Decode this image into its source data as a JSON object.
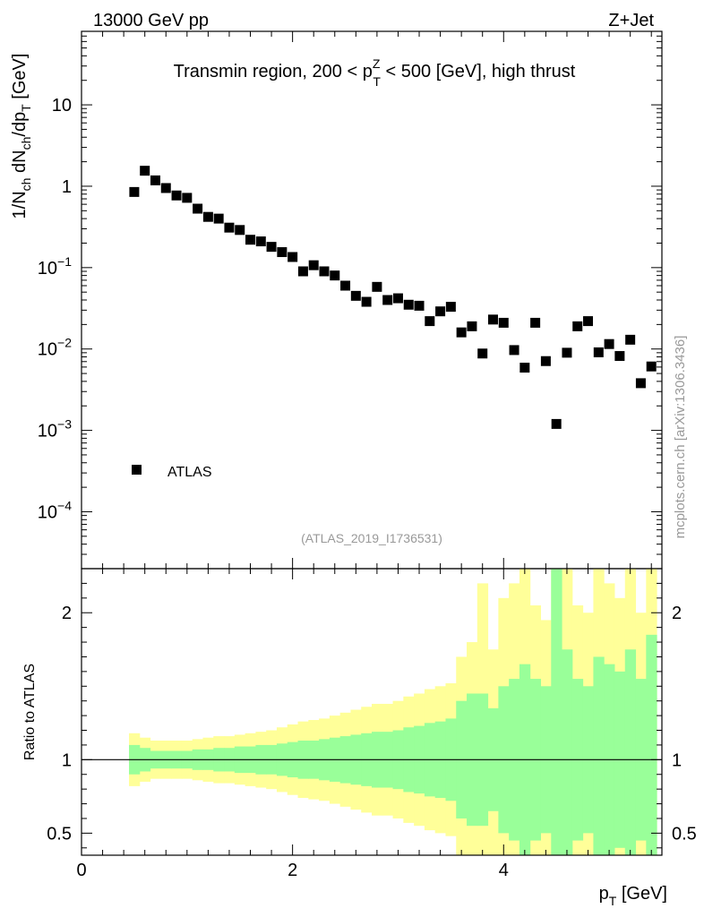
{
  "header": {
    "left": "13000 GeV pp",
    "right": "Z+Jet"
  },
  "plot_title": {
    "prefix": "Transmin region, 200 < p",
    "sup": "Z",
    "sub": "T",
    "suffix": " < 500 [GeV], high thrust"
  },
  "watermark": "(ATLAS_2019_I1736531)",
  "side_label": "mcplots.cern.ch [arXiv:1306.3436]",
  "legend": {
    "label": "ATLAS"
  },
  "y_label_main": {
    "p1": "1/N",
    "s1": "ch",
    "p2": " dN",
    "s2": "ch",
    "p3": "/dp",
    "s3": "T",
    "p4": " [GeV]"
  },
  "y_label_ratio": "Ratio to ATLAS",
  "x_label": {
    "p": "p",
    "sub": "T",
    "unit": " [GeV]"
  },
  "colors": {
    "marker": "#000000",
    "band_outer": "#ffff99",
    "band_inner": "#99ff99",
    "text_gray": "#999999"
  },
  "chart_data": [
    {
      "type": "scatter",
      "name": "main",
      "yscale": "log",
      "xlim": [
        0,
        5.5
      ],
      "ylim": [
        2e-05,
        80
      ],
      "xticks": [
        0,
        2,
        4
      ],
      "yticks": [
        {
          "value": 10,
          "base": "10",
          "exp": ""
        },
        {
          "value": 1,
          "base": "1",
          "exp": ""
        },
        {
          "value": 0.1,
          "base": "10",
          "exp": "−1"
        },
        {
          "value": 0.01,
          "base": "10",
          "exp": "−2"
        },
        {
          "value": 0.001,
          "base": "10",
          "exp": "−3"
        },
        {
          "value": 0.0001,
          "base": "10",
          "exp": "−4"
        }
      ],
      "series": [
        {
          "name": "ATLAS",
          "x": [
            0.5,
            0.6,
            0.7,
            0.8,
            0.9,
            1.0,
            1.1,
            1.2,
            1.3,
            1.4,
            1.5,
            1.6,
            1.7,
            1.8,
            1.9,
            2.0,
            2.1,
            2.2,
            2.3,
            2.4,
            2.5,
            2.6,
            2.7,
            2.8,
            2.9,
            3.0,
            3.1,
            3.2,
            3.3,
            3.4,
            3.5,
            3.6,
            3.7,
            3.8,
            3.9,
            4.0,
            4.1,
            4.2,
            4.3,
            4.4,
            4.5,
            4.6,
            4.7,
            4.8,
            4.9,
            5.0,
            5.1,
            5.2,
            5.3,
            5.4
          ],
          "y": [
            0.85,
            1.55,
            1.18,
            0.95,
            0.77,
            0.72,
            0.53,
            0.42,
            0.4,
            0.31,
            0.29,
            0.22,
            0.21,
            0.18,
            0.155,
            0.135,
            0.09,
            0.107,
            0.09,
            0.08,
            0.06,
            0.045,
            0.038,
            0.058,
            0.04,
            0.042,
            0.035,
            0.034,
            0.022,
            0.029,
            0.033,
            0.016,
            0.019,
            0.0088,
            0.023,
            0.021,
            0.0097,
            0.0059,
            0.021,
            0.0071,
            0.0012,
            0.009,
            0.019,
            0.022,
            0.0091,
            0.0115,
            0.0082,
            0.013,
            0.0038,
            0.0061
          ]
        }
      ]
    },
    {
      "type": "area",
      "name": "ratio",
      "xlim": [
        0,
        5.5
      ],
      "ylim": [
        0.35,
        2.3
      ],
      "xticks": [
        0,
        2,
        4
      ],
      "yticks": [
        0.5,
        1,
        2
      ],
      "bin_edges": [
        0.45,
        0.55,
        0.65,
        0.75,
        0.85,
        0.95,
        1.05,
        1.15,
        1.25,
        1.35,
        1.45,
        1.55,
        1.65,
        1.75,
        1.85,
        1.95,
        2.05,
        2.15,
        2.25,
        2.35,
        2.45,
        2.55,
        2.65,
        2.75,
        2.85,
        2.95,
        3.05,
        3.15,
        3.25,
        3.35,
        3.45,
        3.55,
        3.65,
        3.75,
        3.85,
        3.95,
        4.05,
        4.15,
        4.25,
        4.35,
        4.45,
        4.55,
        4.65,
        4.75,
        4.85,
        4.95,
        5.05,
        5.15,
        5.25,
        5.35,
        5.45
      ],
      "inner_high": [
        1.1,
        1.08,
        1.06,
        1.06,
        1.06,
        1.06,
        1.07,
        1.07,
        1.08,
        1.08,
        1.09,
        1.09,
        1.1,
        1.1,
        1.11,
        1.12,
        1.13,
        1.13,
        1.14,
        1.15,
        1.16,
        1.17,
        1.18,
        1.19,
        1.19,
        1.2,
        1.22,
        1.23,
        1.25,
        1.26,
        1.28,
        1.4,
        1.45,
        1.45,
        1.35,
        1.5,
        1.55,
        1.65,
        1.55,
        1.5,
        2.3,
        1.75,
        1.55,
        1.5,
        1.7,
        1.65,
        1.6,
        1.75,
        1.55,
        1.85
      ],
      "inner_low": [
        0.9,
        0.92,
        0.94,
        0.94,
        0.94,
        0.94,
        0.93,
        0.93,
        0.92,
        0.92,
        0.91,
        0.91,
        0.9,
        0.9,
        0.89,
        0.88,
        0.87,
        0.87,
        0.86,
        0.85,
        0.84,
        0.83,
        0.82,
        0.81,
        0.81,
        0.8,
        0.78,
        0.77,
        0.75,
        0.74,
        0.72,
        0.6,
        0.55,
        0.55,
        0.65,
        0.5,
        0.45,
        0.35,
        0.45,
        0.5,
        0.35,
        0.35,
        0.45,
        0.5,
        0.35,
        0.35,
        0.4,
        0.35,
        0.45,
        0.35
      ],
      "outer_high": [
        1.18,
        1.15,
        1.13,
        1.13,
        1.13,
        1.13,
        1.14,
        1.15,
        1.16,
        1.16,
        1.17,
        1.18,
        1.19,
        1.2,
        1.22,
        1.24,
        1.26,
        1.27,
        1.28,
        1.3,
        1.32,
        1.34,
        1.36,
        1.38,
        1.38,
        1.4,
        1.43,
        1.45,
        1.48,
        1.5,
        1.52,
        1.7,
        1.8,
        2.2,
        1.75,
        2.1,
        2.2,
        2.3,
        2.05,
        1.95,
        2.3,
        2.3,
        2.05,
        2.0,
        2.3,
        2.2,
        2.1,
        2.3,
        2.0,
        2.3
      ],
      "outer_low": [
        0.82,
        0.85,
        0.87,
        0.87,
        0.87,
        0.87,
        0.86,
        0.85,
        0.84,
        0.84,
        0.83,
        0.82,
        0.81,
        0.8,
        0.78,
        0.76,
        0.74,
        0.73,
        0.72,
        0.7,
        0.68,
        0.66,
        0.64,
        0.62,
        0.62,
        0.6,
        0.57,
        0.55,
        0.52,
        0.5,
        0.48,
        0.35,
        0.35,
        0.35,
        0.35,
        0.35,
        0.35,
        0.35,
        0.35,
        0.35,
        0.35,
        0.35,
        0.35,
        0.35,
        0.35,
        0.35,
        0.35,
        0.35,
        0.35,
        0.35
      ]
    }
  ]
}
